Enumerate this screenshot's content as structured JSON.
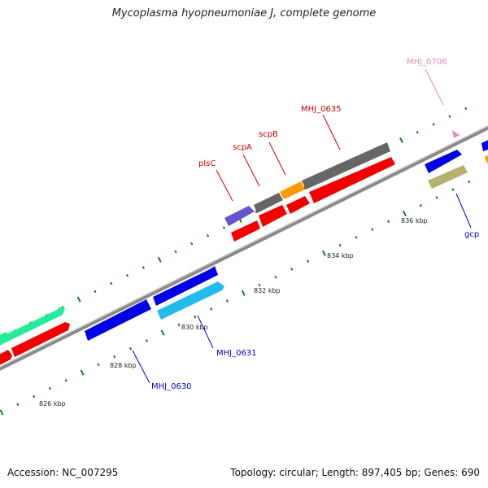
{
  "title": "Mycoplasma hyopneumoniae J, complete genome",
  "footer": {
    "accession": "Accession: NC_007295",
    "summary": "Topology: circular; Length: 897,405 bp; Genes: 690"
  },
  "colors": {
    "backbone": "#8a8a8a",
    "tick": "#1a7a1a",
    "label_red": "#cc0000",
    "label_blue": "#0000cc",
    "label_pink": "#e88ac0"
  },
  "scale": {
    "unit": "kbp",
    "ticks": [
      {
        "value": 826,
        "label": "826 kbp"
      },
      {
        "value": 828,
        "label": "828 kbp"
      },
      {
        "value": 830,
        "label": "830 kbp"
      },
      {
        "value": 832,
        "label": "832 kbp"
      },
      {
        "value": 834,
        "label": "834 kbp"
      },
      {
        "value": 836,
        "label": "836 kbp"
      }
    ]
  },
  "gene_labels": [
    {
      "id": "plsC",
      "text": "plsC",
      "color": "#cc0000"
    },
    {
      "id": "scpA",
      "text": "scpA",
      "color": "#cc0000"
    },
    {
      "id": "scpB",
      "text": "scpB",
      "color": "#cc0000"
    },
    {
      "id": "MHJ_0635",
      "text": "MHJ_0635",
      "color": "#cc0000"
    },
    {
      "id": "MHJ_0706",
      "text": "MHJ_0706",
      "color": "#e88ac0"
    },
    {
      "id": "gcp",
      "text": "gcp",
      "color": "#0000cc"
    },
    {
      "id": "MHJ_0631",
      "text": "MHJ_0631",
      "color": "#0000cc"
    },
    {
      "id": "MHJ_0630",
      "text": "MHJ_0630",
      "color": "#0000cc"
    }
  ],
  "gene_colors": {
    "red": "#f20000",
    "blue": "#0000e6",
    "cyan": "#22bbee",
    "green": "#22ee99",
    "gray": "#666666",
    "orange": "#ff9900",
    "purple": "#6655cc",
    "olive": "#b8b070"
  }
}
